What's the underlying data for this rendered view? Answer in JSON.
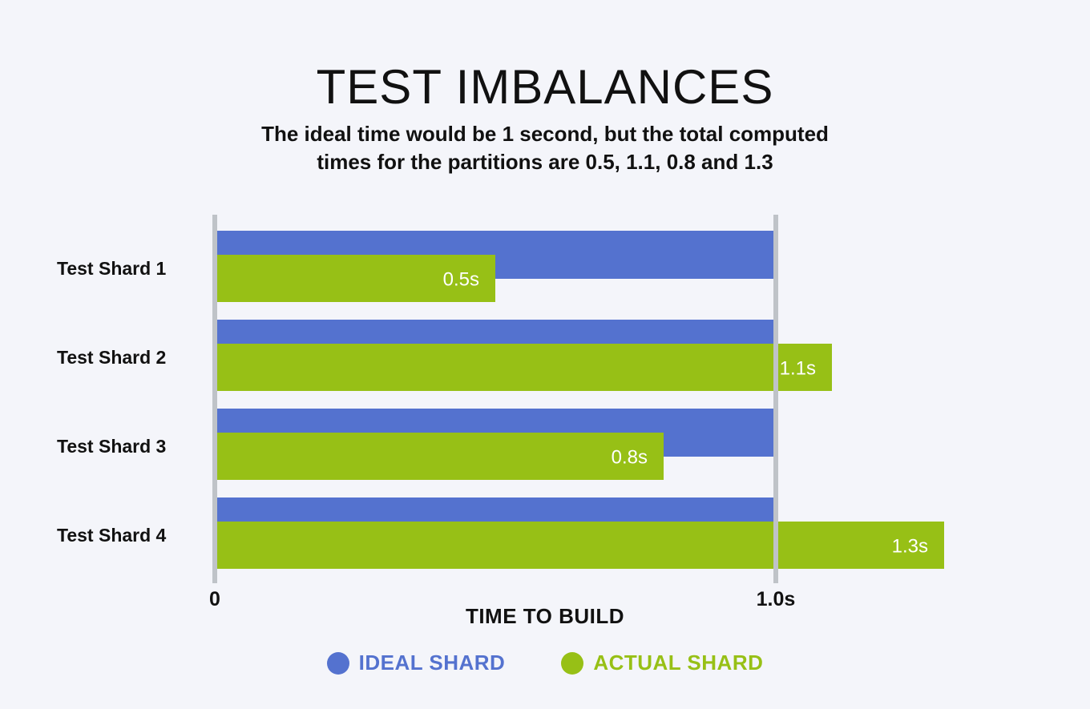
{
  "colors": {
    "ideal": "#5472cf",
    "actual": "#97c016",
    "axis": "#bfc3c8",
    "background": "#f4f5fa",
    "text": "#111111",
    "bar_label": "#ffffff"
  },
  "chart_data": {
    "type": "bar",
    "orientation": "horizontal",
    "title": "TEST IMBALANCES",
    "subtitle_lines": [
      "The ideal time would be 1 second, but the total computed",
      "times for the partitions are 0.5, 1.1, 0.8 and 1.3"
    ],
    "xlabel": "TIME TO BUILD",
    "ylabel": "",
    "categories": [
      "Test Shard 1",
      "Test Shard 2",
      "Test Shard 3",
      "Test Shard 4"
    ],
    "series": [
      {
        "name": "IDEAL SHARD",
        "values": [
          1.0,
          1.0,
          1.0,
          1.0
        ]
      },
      {
        "name": "ACTUAL SHARD",
        "values": [
          0.5,
          1.1,
          0.8,
          1.3
        ],
        "labels": [
          "0.5s",
          "1.1s",
          "0.8s",
          "1.3s"
        ]
      }
    ],
    "x_ticks": [
      {
        "value": 0,
        "label": "0"
      },
      {
        "value": 1.0,
        "label": "1.0s"
      }
    ],
    "xlim": [
      0,
      1.3
    ],
    "legend": "bottom-center",
    "grid": false
  }
}
